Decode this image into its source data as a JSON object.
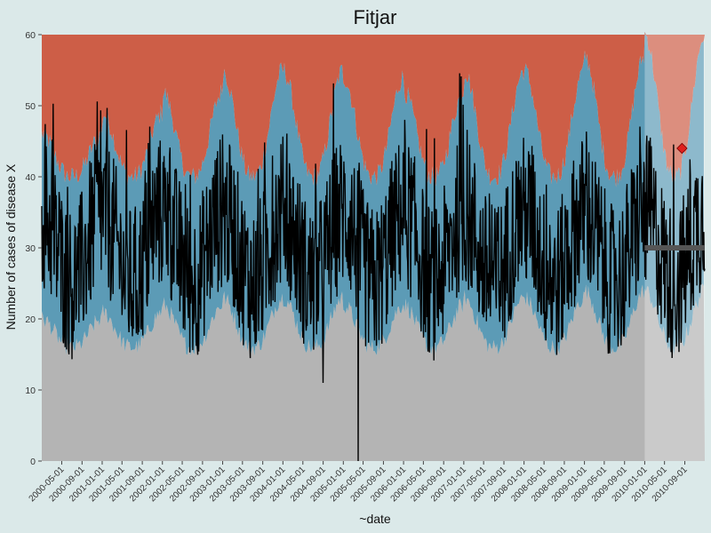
{
  "chart_data": {
    "type": "area",
    "title": "Fitjar",
    "xlabel": "~date",
    "ylabel": "Number of cases of disease X",
    "ylim": [
      0,
      60
    ],
    "yticks": [
      0,
      10,
      20,
      30,
      40,
      50,
      60
    ],
    "xlim": [
      "2000-01-01",
      "2010-12-31"
    ],
    "forecast_start": "2010-01-01",
    "xticks": [
      "2000-05-01",
      "2000-09-01",
      "2001-01-01",
      "2001-05-01",
      "2001-09-01",
      "2002-01-01",
      "2002-05-01",
      "2002-09-01",
      "2003-01-01",
      "2003-05-01",
      "2003-09-01",
      "2004-01-01",
      "2004-05-01",
      "2004-09-01",
      "2005-01-01",
      "2005-05-01",
      "2005-09-01",
      "2006-01-01",
      "2006-05-01",
      "2006-09-01",
      "2007-01-01",
      "2007-05-01",
      "2007-09-01",
      "2008-01-01",
      "2008-05-01",
      "2008-09-01",
      "2009-01-01",
      "2009-05-01",
      "2009-09-01",
      "2010-01-01",
      "2010-05-01",
      "2010-09-01"
    ],
    "bands": {
      "upper_threshold_peak": [
        46,
        49,
        52,
        55,
        55,
        54,
        52,
        55,
        55,
        57,
        60,
        57
      ],
      "upper_threshold_trough": 40,
      "lower_threshold_peak": [
        20,
        21,
        22,
        23,
        23,
        22,
        22,
        23,
        23,
        24,
        24,
        23
      ],
      "lower_threshold_trough": 16
    },
    "forecast_line": {
      "start": "2010-01-01",
      "end": "2010-12-31",
      "y": 30
    },
    "alert_point": {
      "x": "2010-08-15",
      "y": 44
    },
    "series_rule": {
      "baseline": 30,
      "seasonal_amplitude": 5,
      "peak_month": 1
    },
    "spikes": [
      {
        "x": "2004-09-01",
        "y": 11
      },
      {
        "x": "2005-04-01",
        "y": 0
      }
    ],
    "colors": {
      "background": "#dbe9e9",
      "high_zone": "#cd5e47",
      "high_zone_forecast": "#f89a80",
      "normal_zone": "#5c9bb6",
      "normal_zone_forecast": "#8ccbe8",
      "low_zone": "#b4b4b4",
      "low_zone_forecast": "#c0c0c0",
      "line": "#000000",
      "forecast_line": "#555555",
      "alert_point": "#e0201c"
    }
  }
}
